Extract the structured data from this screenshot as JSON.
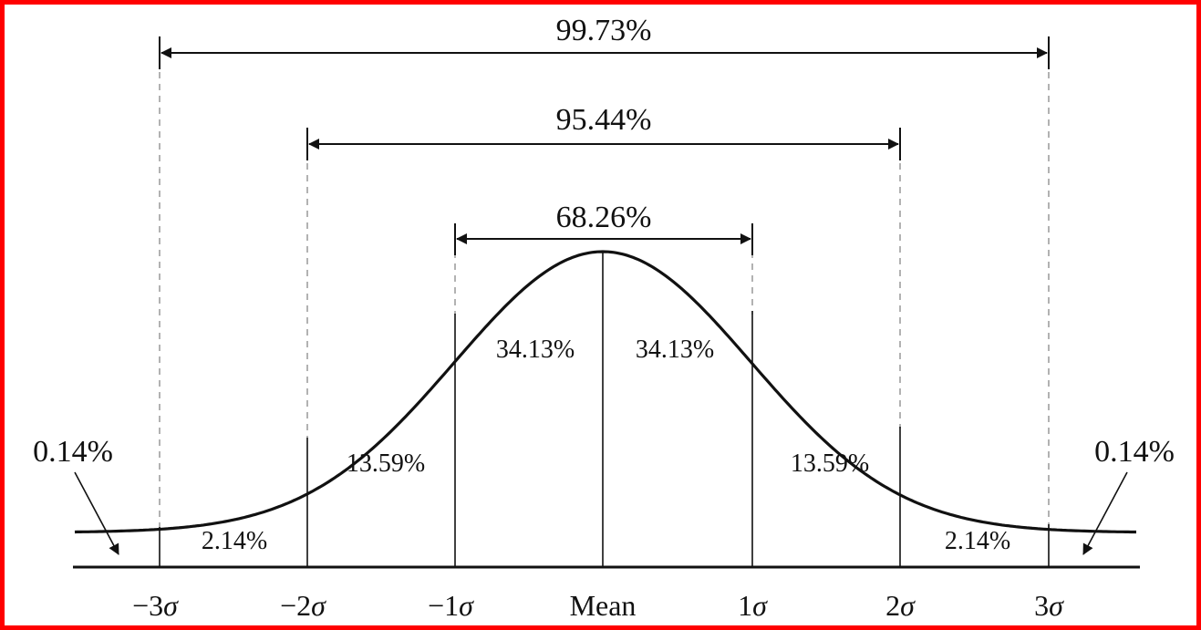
{
  "diagram": {
    "spans": {
      "three_sigma": "99.73%",
      "two_sigma": "95.44%",
      "one_sigma": "68.26%"
    },
    "regions": {
      "left_inner": "34.13%",
      "right_inner": "34.13%",
      "left_mid": "13.59%",
      "right_mid": "13.59%",
      "left_outer": "2.14%",
      "right_outer": "2.14%",
      "left_tail": "0.14%",
      "right_tail": "0.14%"
    },
    "axis_ticks": {
      "m3_prefix": "−3",
      "m2_prefix": "−2",
      "m1_prefix": "−1",
      "mean": "Mean",
      "p1_prefix": "1",
      "p2_prefix": "2",
      "p3_prefix": "3",
      "sigma_symbol": "σ"
    },
    "colors": {
      "border": "#ff0000",
      "ink": "#111111"
    }
  }
}
